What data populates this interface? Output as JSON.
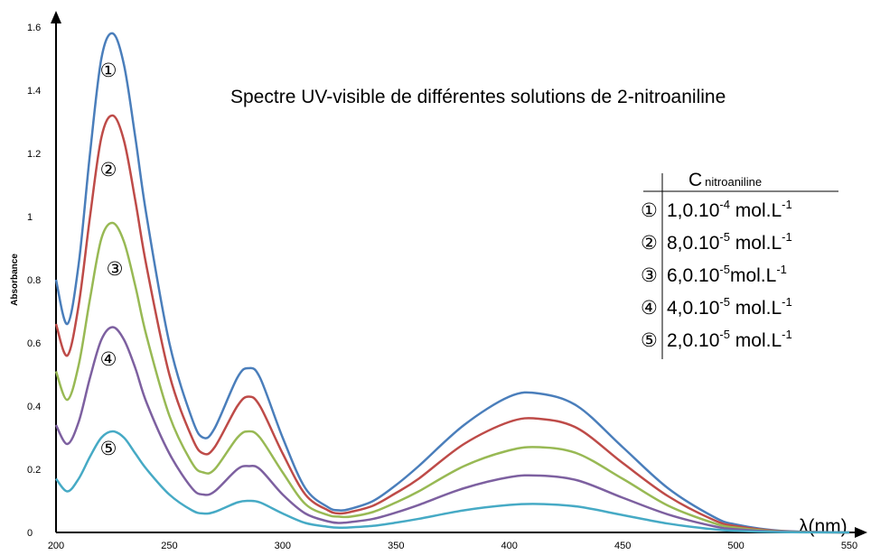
{
  "chart_data": {
    "type": "line",
    "title": "Spectre UV-visible de différentes solutions de 2-nitroaniline",
    "x_label": "λ(nm)",
    "y_label": "Absorbance",
    "xlim": [
      200,
      550
    ],
    "ylim": [
      0,
      1.6
    ],
    "xticks": [
      200,
      250,
      300,
      350,
      400,
      450,
      500,
      550
    ],
    "yticks": [
      0,
      0.2,
      0.4,
      0.6,
      0.8,
      1,
      1.2,
      1.4,
      1.6
    ],
    "grid": false,
    "x": [
      200,
      205,
      210,
      215,
      220,
      225,
      230,
      235,
      240,
      250,
      260,
      265,
      270,
      280,
      285,
      290,
      300,
      310,
      320,
      325,
      330,
      340,
      350,
      360,
      380,
      400,
      413,
      430,
      450,
      470,
      490,
      500,
      520,
      550
    ],
    "series": [
      {
        "color": "#4a7ebb",
        "values": [
          0.8,
          0.66,
          0.85,
          1.2,
          1.5,
          1.58,
          1.48,
          1.25,
          1.0,
          0.6,
          0.36,
          0.3,
          0.33,
          0.49,
          0.52,
          0.49,
          0.3,
          0.14,
          0.08,
          0.07,
          0.075,
          0.1,
          0.15,
          0.21,
          0.34,
          0.43,
          0.44,
          0.4,
          0.27,
          0.14,
          0.05,
          0.025,
          0.005,
          0
        ]
      },
      {
        "color": "#be4b48",
        "values": [
          0.66,
          0.56,
          0.72,
          1.0,
          1.25,
          1.32,
          1.24,
          1.05,
          0.84,
          0.5,
          0.3,
          0.25,
          0.27,
          0.4,
          0.43,
          0.4,
          0.25,
          0.12,
          0.07,
          0.06,
          0.065,
          0.085,
          0.125,
          0.17,
          0.28,
          0.35,
          0.36,
          0.33,
          0.22,
          0.115,
          0.04,
          0.02,
          0.004,
          0
        ]
      },
      {
        "color": "#98b954",
        "values": [
          0.51,
          0.42,
          0.53,
          0.74,
          0.93,
          0.98,
          0.92,
          0.78,
          0.62,
          0.37,
          0.22,
          0.19,
          0.2,
          0.3,
          0.32,
          0.3,
          0.19,
          0.09,
          0.055,
          0.05,
          0.05,
          0.065,
          0.095,
          0.13,
          0.21,
          0.26,
          0.27,
          0.25,
          0.17,
          0.085,
          0.03,
          0.015,
          0.003,
          0
        ]
      },
      {
        "color": "#7d60a0",
        "values": [
          0.34,
          0.28,
          0.35,
          0.49,
          0.61,
          0.65,
          0.61,
          0.52,
          0.41,
          0.25,
          0.14,
          0.12,
          0.13,
          0.2,
          0.21,
          0.2,
          0.12,
          0.06,
          0.035,
          0.03,
          0.033,
          0.043,
          0.063,
          0.087,
          0.14,
          0.175,
          0.18,
          0.165,
          0.11,
          0.057,
          0.02,
          0.01,
          0.002,
          0
        ]
      },
      {
        "color": "#46aac5",
        "values": [
          0.17,
          0.13,
          0.17,
          0.24,
          0.3,
          0.32,
          0.3,
          0.25,
          0.2,
          0.12,
          0.07,
          0.06,
          0.065,
          0.095,
          0.1,
          0.095,
          0.06,
          0.03,
          0.018,
          0.015,
          0.016,
          0.021,
          0.031,
          0.043,
          0.07,
          0.087,
          0.09,
          0.082,
          0.055,
          0.028,
          0.01,
          0.005,
          0.001,
          0
        ]
      }
    ],
    "curve_labels": [
      "①",
      "②",
      "③",
      "④",
      "⑤"
    ],
    "concentration_table": {
      "header": {
        "symbol": "C",
        "subscript": "nitroaniline"
      },
      "rows": [
        {
          "marker": "①",
          "value": "1,0.10",
          "exponent": "-4",
          "unit": " mol.L",
          "unit_exponent": "-1"
        },
        {
          "marker": "②",
          "value": "8,0.10",
          "exponent": "-5",
          "unit": " mol.L",
          "unit_exponent": "-1"
        },
        {
          "marker": "③",
          "value": "6,0.10",
          "exponent": "-5",
          "unit": "mol.L",
          "unit_exponent": "-1"
        },
        {
          "marker": "④",
          "value": "4,0.10",
          "exponent": "-5",
          "unit": " mol.L",
          "unit_exponent": "-1"
        },
        {
          "marker": "⑤",
          "value": "2,0.10",
          "exponent": "-5",
          "unit": " mol.L",
          "unit_exponent": "-1"
        }
      ]
    }
  }
}
